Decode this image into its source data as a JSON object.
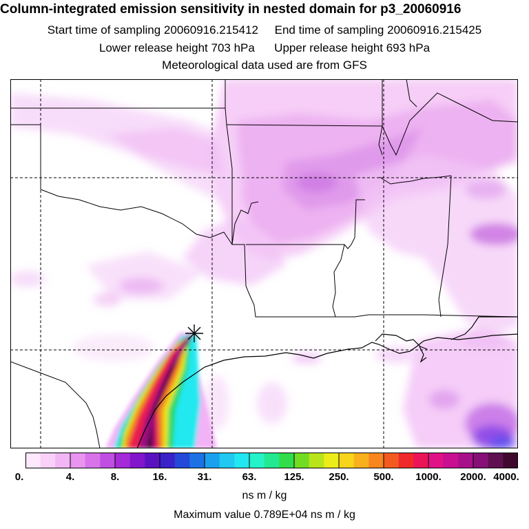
{
  "title": "Column-integrated emission sensitivity in nested domain for p3_20060916",
  "subtitle": {
    "start": "Start time of sampling 20060916.215412",
    "end": "End time of sampling 20060916.215425",
    "lower": "Lower release height  703 hPa",
    "upper": "Upper release height  693 hPa",
    "met": "Meteorological data used are from GFS"
  },
  "colorbar": {
    "ticks": [
      "0.",
      "4.",
      "8.",
      "16.",
      "31.",
      "63.",
      "125.",
      "250.",
      "500.",
      "1000.",
      "2000.",
      "4000."
    ],
    "colors": [
      "#fde8fd",
      "#f8d0f8",
      "#f2b6f4",
      "#e894f0",
      "#d873ea",
      "#c04ee2",
      "#a52ad8",
      "#8116cc",
      "#5a12c0",
      "#3a22c8",
      "#2448d8",
      "#1c72e4",
      "#1aa0ec",
      "#20c8f2",
      "#22e6f0",
      "#24f2c8",
      "#22e890",
      "#32dc4a",
      "#72dc22",
      "#b8e41c",
      "#ecec1a",
      "#f8d41a",
      "#f8b01c",
      "#f8861e",
      "#f45a20",
      "#f02a2a",
      "#ec1458",
      "#e01286",
      "#c81090",
      "#a8108a",
      "#861078",
      "#5e1050",
      "#40082e"
    ],
    "units": "ns m / kg"
  },
  "max_value": "Maximum value  0.789E+04 ns m / kg"
}
